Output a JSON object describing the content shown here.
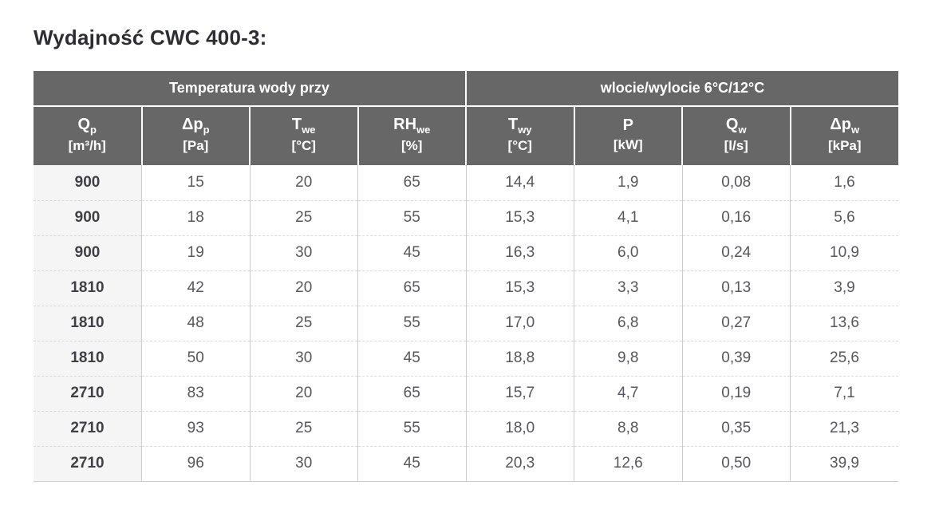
{
  "page": {
    "title": "Wydajność CWC 400-3:"
  },
  "colors": {
    "header_background": "#676767",
    "header_text": "#ffffff",
    "first_column_background": "#f5f5f6",
    "first_column_text": "#3e4045",
    "cell_text": "#55575c",
    "solid_border": "#cccccc",
    "dashed_border": "#d9d9d9",
    "title_text": "#2c2e33"
  },
  "chart_data": {
    "type": "table",
    "title": "Wydajność CWC 400-3:",
    "group_headers": [
      {
        "label": "Temperatura wody przy",
        "span": 4
      },
      {
        "label": "wlocie/wylocie 6°C/12°C",
        "span": 4
      }
    ],
    "columns": [
      {
        "symbol": "Q",
        "sub": "p",
        "unit": "[m³/h]"
      },
      {
        "symbol": "Δp",
        "sub": "p",
        "unit": "[Pa]"
      },
      {
        "symbol": "T",
        "sub": "we",
        "unit": "[°C]"
      },
      {
        "symbol": "RH",
        "sub": "we",
        "unit": "[%]"
      },
      {
        "symbol": "T",
        "sub": "wy",
        "unit": "[°C]"
      },
      {
        "symbol": "P",
        "sub": "",
        "unit": "[kW]"
      },
      {
        "symbol": "Q",
        "sub": "w",
        "unit": "[l/s]"
      },
      {
        "symbol": "Δp",
        "sub": "w",
        "unit": "[kPa]"
      }
    ],
    "rows": [
      [
        "900",
        "15",
        "20",
        "65",
        "14,4",
        "1,9",
        "0,08",
        "1,6"
      ],
      [
        "900",
        "18",
        "25",
        "55",
        "15,3",
        "4,1",
        "0,16",
        "5,6"
      ],
      [
        "900",
        "19",
        "30",
        "45",
        "16,3",
        "6,0",
        "0,24",
        "10,9"
      ],
      [
        "1810",
        "42",
        "20",
        "65",
        "15,3",
        "3,3",
        "0,13",
        "3,9"
      ],
      [
        "1810",
        "48",
        "25",
        "55",
        "17,0",
        "6,8",
        "0,27",
        "13,6"
      ],
      [
        "1810",
        "50",
        "30",
        "45",
        "18,8",
        "9,8",
        "0,39",
        "25,6"
      ],
      [
        "2710",
        "83",
        "20",
        "65",
        "15,7",
        "4,7",
        "0,19",
        "7,1"
      ],
      [
        "2710",
        "93",
        "25",
        "55",
        "18,0",
        "8,8",
        "0,35",
        "21,3"
      ],
      [
        "2710",
        "96",
        "30",
        "45",
        "20,3",
        "12,6",
        "0,50",
        "39,9"
      ]
    ]
  }
}
